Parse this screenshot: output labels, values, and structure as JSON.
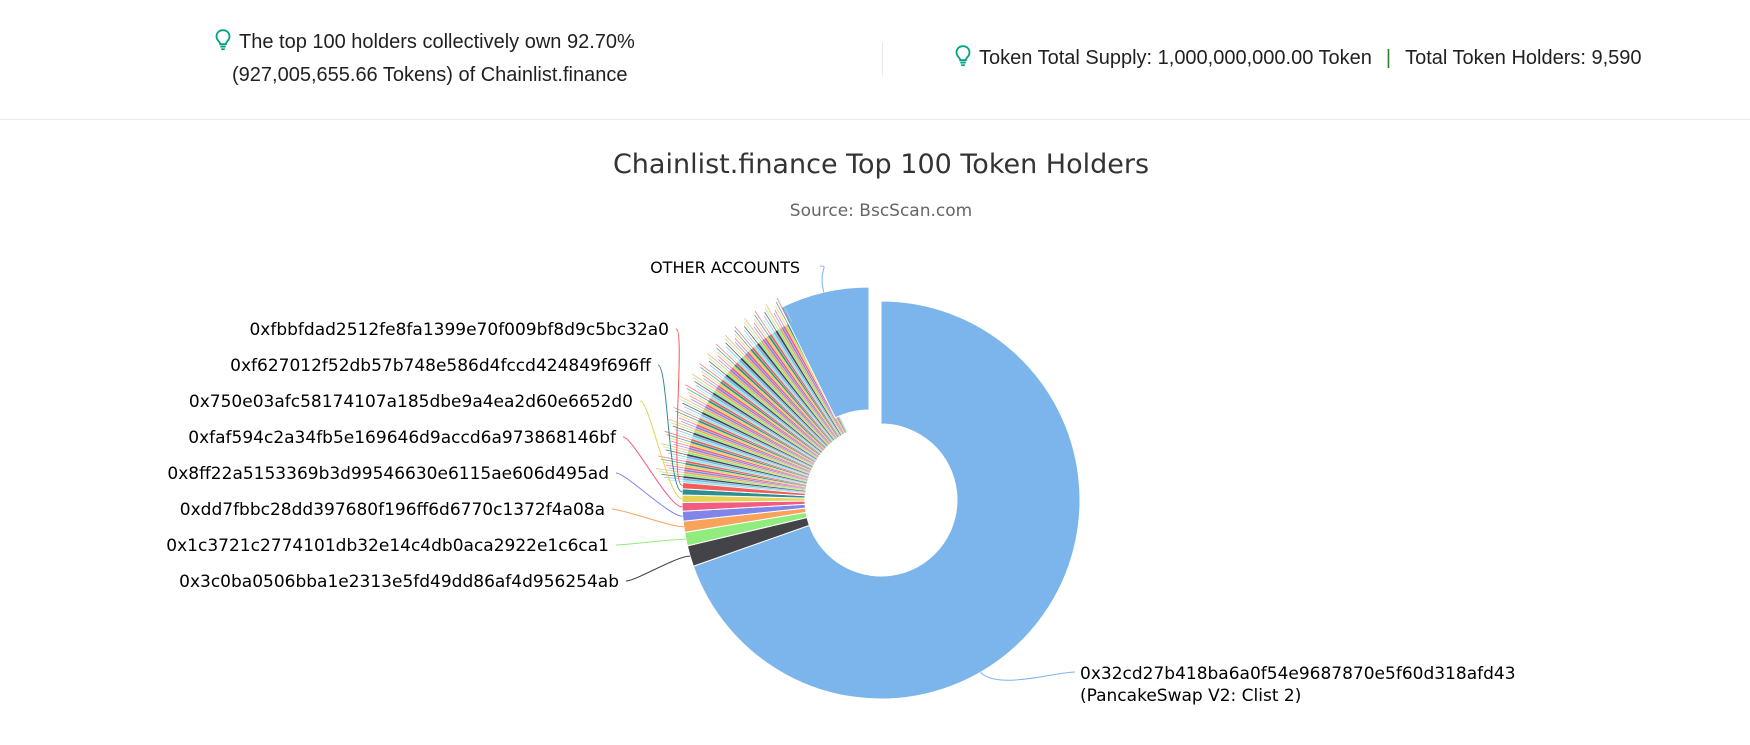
{
  "summary": {
    "top_holders_line1": "The top 100 holders collectively own 92.70%",
    "top_holders_line2": "(927,005,655.66 Tokens) of Chainlist.finance",
    "total_supply": "Token Total Supply: 1,000,000,000.00 Token",
    "separator": "|",
    "total_holders": "Total Token Holders: 9,590",
    "icon": "lightbulb-icon",
    "icon_color": "#00a186"
  },
  "chart_data": {
    "type": "pie",
    "variant": "donut",
    "title": "Chainlist.finance Top 100 Token Holders",
    "subtitle": "Source: BscScan.com",
    "labeled_slices": [
      {
        "label": "0x32cd27b418ba6a0f54e9687870e5f60d318afd43",
        "sublabel": "(PancakeSwap V2: Clist 2)",
        "percent": 69.6,
        "color": "#7cb5ec"
      },
      {
        "label": "0x3c0ba0506bba1e2313e5fd49dd86af4d956254ab",
        "percent": 1.7,
        "color": "#434348"
      },
      {
        "label": "0x1c3721c2774101db32e14c4db0aca2922e1c6ca1",
        "percent": 1.1,
        "color": "#90ed7d"
      },
      {
        "label": "0xdd7fbbc28dd397680f196ff6d6770c1372f4a08a",
        "percent": 0.9,
        "color": "#f7a35c"
      },
      {
        "label": "0x8ff22a5153369b3d99546630e6115ae606d495ad",
        "percent": 0.8,
        "color": "#8085e9"
      },
      {
        "label": "0xfaf594c2a34fb5e169646d9accd6a973868146bf",
        "percent": 0.7,
        "color": "#f15c80"
      },
      {
        "label": "0x750e03afc58174107a185dbe9a4ea2d60e6652d0",
        "percent": 0.6,
        "color": "#e4d354"
      },
      {
        "label": "0xf627012f52db57b748e586d4fccd424849f696ff",
        "percent": 0.5,
        "color": "#2b908f"
      },
      {
        "label": "0xfbbfdad2512fe8fa1399e70f009bf8d9c5bc32a0",
        "percent": 0.5,
        "color": "#f45b5b"
      }
    ],
    "unlabeled_slices": {
      "count": 91,
      "total_percent": 16.3,
      "colors": [
        "#91e8e1",
        "#7cb5ec",
        "#434348",
        "#90ed7d",
        "#f7a35c",
        "#8085e9",
        "#f15c80",
        "#e4d354",
        "#2b908f",
        "#f45b5b"
      ]
    },
    "other_slice": {
      "label": "OTHER ACCOUNTS",
      "percent": 7.3,
      "color": "#7cb5ec",
      "exploded": true
    }
  }
}
